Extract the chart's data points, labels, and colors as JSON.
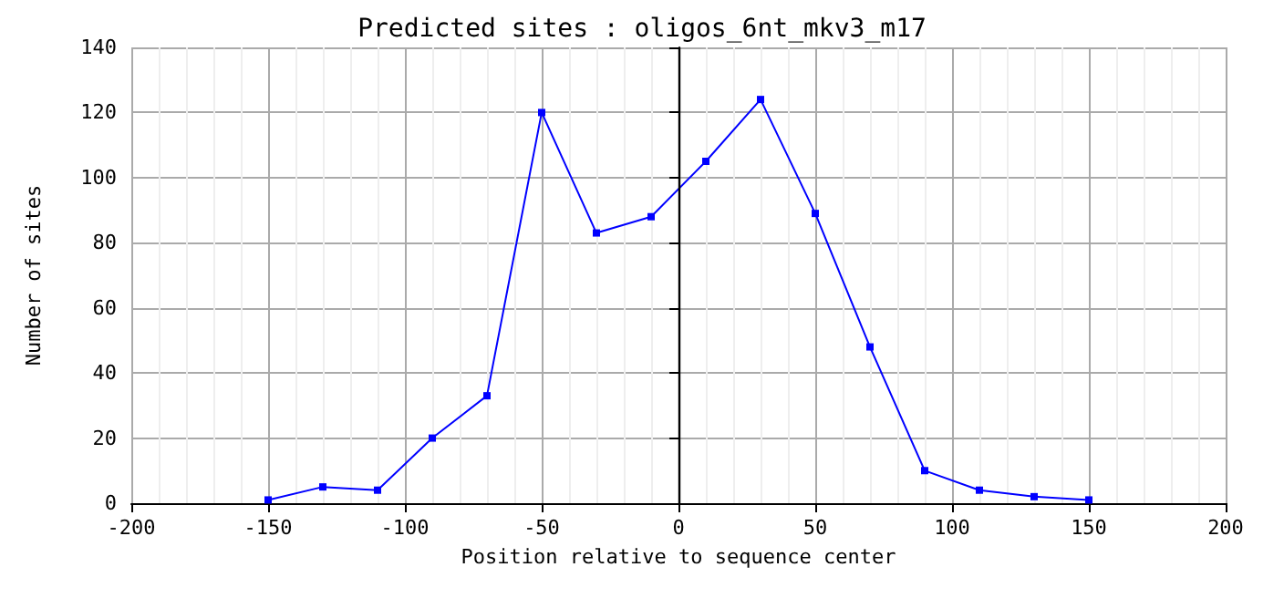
{
  "chart_data": {
    "type": "line",
    "title": "Predicted sites : oligos_6nt_mkv3_m17",
    "xlabel": "Position relative to sequence center",
    "ylabel": "Number of sites",
    "x": [
      -150,
      -130,
      -110,
      -90,
      -70,
      -50,
      -30,
      -10,
      10,
      30,
      50,
      70,
      90,
      110,
      130,
      150
    ],
    "series": [
      {
        "color": "#0000ff",
        "values": [
          1,
          5,
          4,
          20,
          33,
          120,
          83,
          88,
          105,
          124,
          89,
          48,
          10,
          4,
          2,
          1
        ]
      }
    ],
    "xlim": [
      -200,
      200
    ],
    "xticks": [
      -200,
      -150,
      -100,
      -50,
      0,
      50,
      100,
      150,
      200
    ],
    "ylim": [
      0,
      140
    ],
    "yticks": [
      0,
      20,
      40,
      60,
      80,
      100,
      120,
      140
    ],
    "ref_lines": [
      {
        "axis": "x",
        "value": 0,
        "color": "#000000"
      }
    ],
    "grid": true,
    "marker": "square",
    "line_style": "solid"
  }
}
